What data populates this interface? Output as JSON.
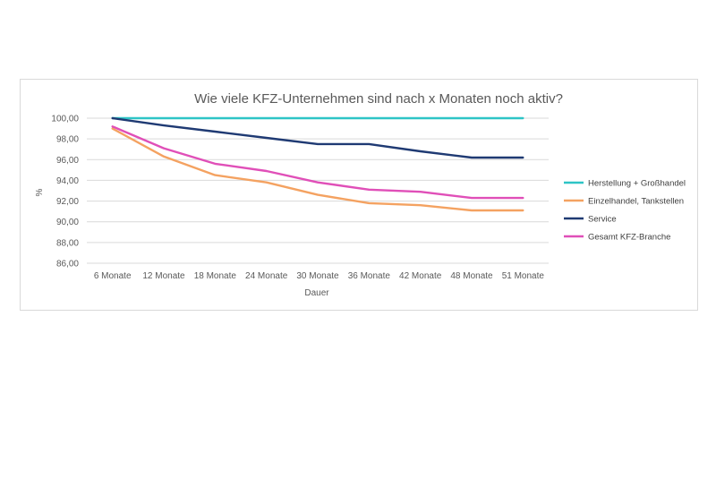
{
  "chart_data": {
    "type": "line",
    "title": "Wie viele KFZ-Unternehmen sind nach x Monaten noch aktiv?",
    "xlabel": "Dauer",
    "ylabel": "%",
    "categories": [
      "6 Monate",
      "12 Monate",
      "18 Monate",
      "24 Monate",
      "30 Monate",
      "36 Monate",
      "42 Monate",
      "48 Monate",
      "51 Monate"
    ],
    "y_ticks": [
      "86,00",
      "88,00",
      "90,00",
      "92,00",
      "94,00",
      "96,00",
      "98,00",
      "100,00"
    ],
    "ylim": [
      86,
      100
    ],
    "grid": true,
    "legend_position": "right",
    "series": [
      {
        "name": "Herstellung + Großhandel",
        "color": "#2ec4c6",
        "values": [
          100,
          100,
          100,
          100,
          100,
          100,
          100,
          100,
          100
        ]
      },
      {
        "name": "Einzelhandel, Tankstellen",
        "color": "#f4a261",
        "values": [
          99.0,
          96.3,
          94.5,
          93.8,
          92.6,
          91.8,
          91.6,
          91.1,
          91.1
        ]
      },
      {
        "name": "Service",
        "color": "#1f3a73",
        "values": [
          100.0,
          99.3,
          98.7,
          98.1,
          97.5,
          97.5,
          96.8,
          96.2,
          96.2
        ]
      },
      {
        "name": "Gesamt KFZ-Branche",
        "color": "#e04fb8",
        "values": [
          99.2,
          97.1,
          95.6,
          94.9,
          93.8,
          93.1,
          92.9,
          92.3,
          92.3
        ]
      }
    ]
  }
}
